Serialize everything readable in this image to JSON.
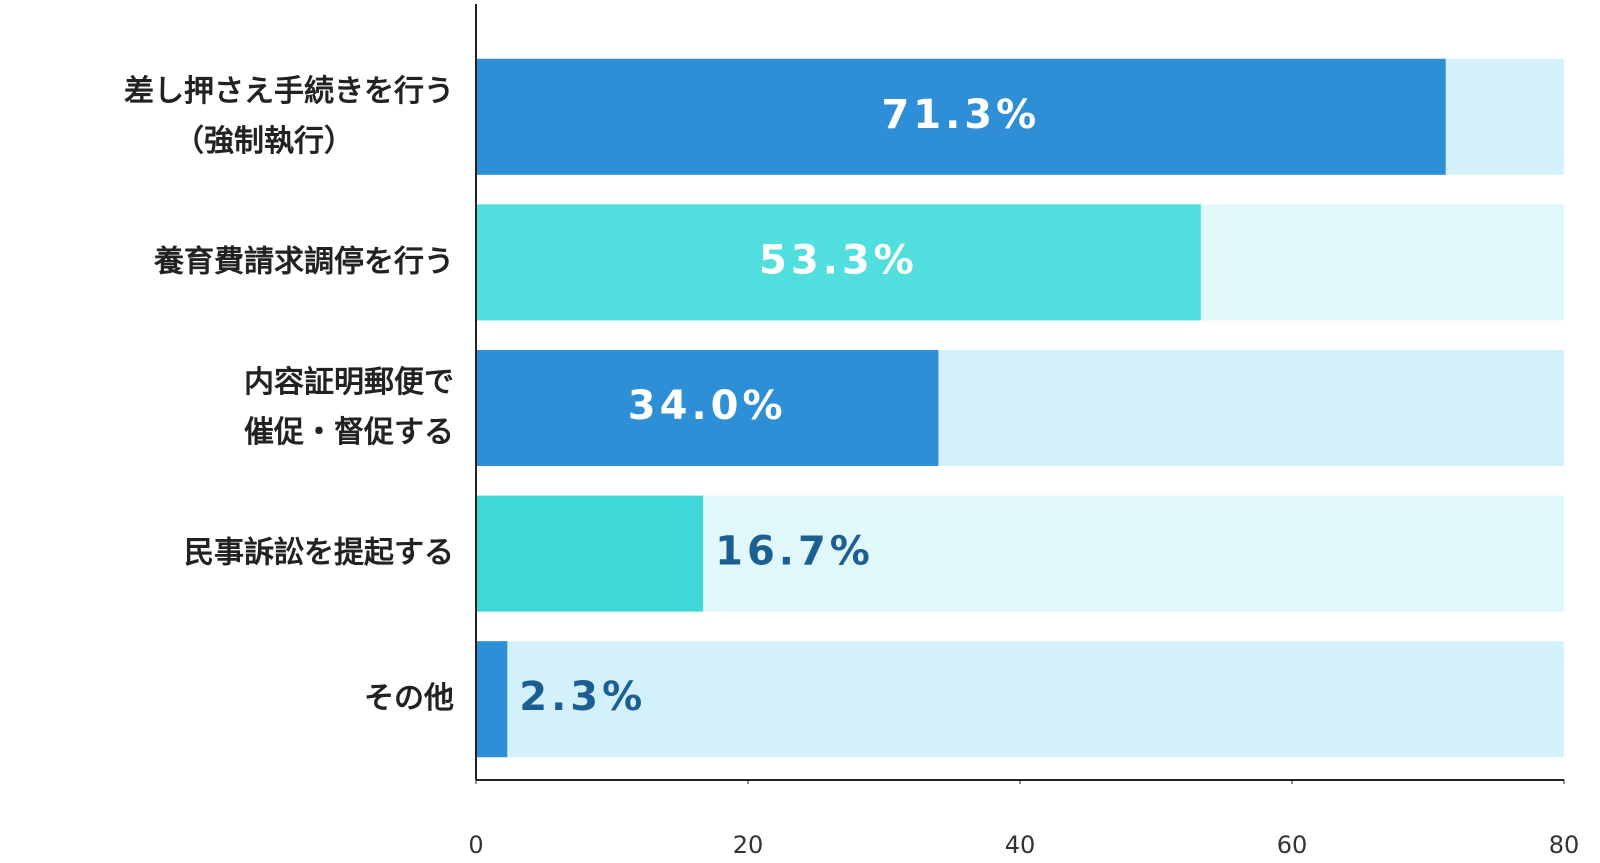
{
  "chart_data": {
    "type": "bar",
    "orientation": "horizontal",
    "categories": [
      [
        "差し押さえ手続きを行う",
        "（強制執行）"
      ],
      [
        "養育費請求調停を行う"
      ],
      [
        "内容証明郵便で",
        "催促・督促する"
      ],
      [
        "民事訴訟を提起する"
      ],
      [
        "その他"
      ]
    ],
    "values": [
      71.3,
      53.3,
      34.0,
      16.7,
      2.3
    ],
    "value_labels": [
      "71.3%",
      "53.3%",
      "34.0%",
      "16.7%",
      "2.3%"
    ],
    "colors": [
      "#2e8fd6",
      "#50dede",
      "#2e8fd6",
      "#3ed8d6",
      "#2e8fd6"
    ],
    "track_colors": [
      "#d3f1fa",
      "#e0f8f9",
      "#d3f1fa",
      "#e0f8f9",
      "#d3f1fa"
    ],
    "xlim": [
      0,
      80
    ],
    "xticks": [
      0,
      20,
      40,
      60,
      80
    ]
  }
}
